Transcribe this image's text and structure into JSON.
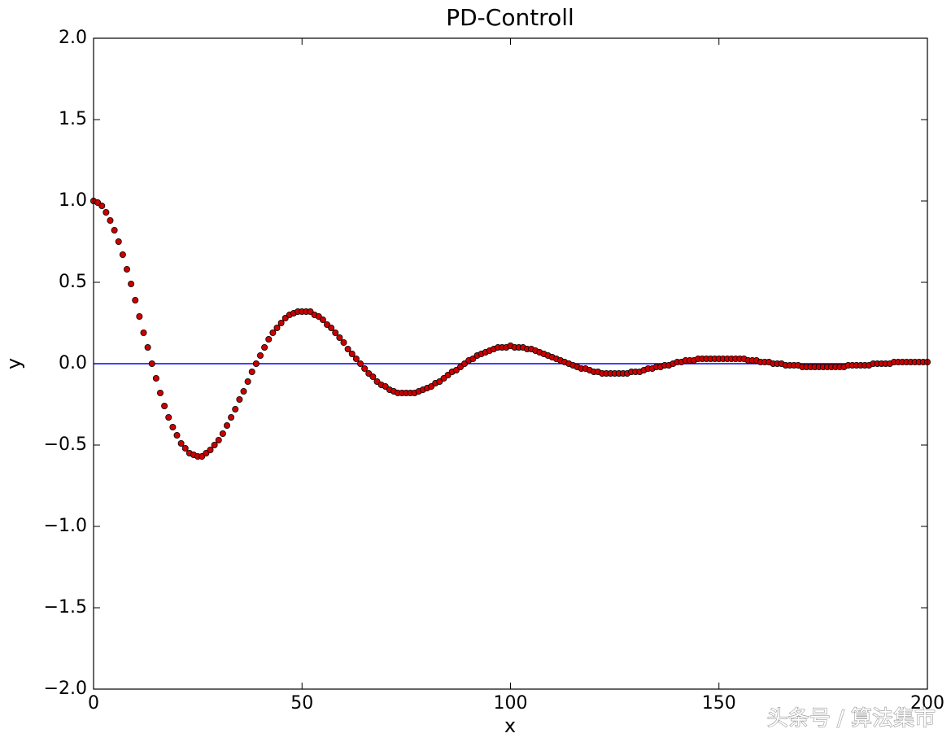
{
  "chart_data": {
    "type": "scatter",
    "title": "PD-Controll",
    "x_label": "x",
    "y_label": "y",
    "annotation": "头条号 / 算法集市",
    "xlim": [
      0,
      200
    ],
    "ylim": [
      -2,
      2
    ],
    "xticks": [
      0,
      50,
      100,
      150,
      200
    ],
    "yticks": [
      {
        "value": -2,
        "label": "−2.0"
      },
      {
        "value": -1.5,
        "label": "−1.5"
      },
      {
        "value": -1,
        "label": "−1.0"
      },
      {
        "value": -0.5,
        "label": "−0.5"
      },
      {
        "value": 0,
        "label": "0.0"
      },
      0.5,
      {
        "value": 1,
        "label": "1.0"
      },
      1.5,
      {
        "value": 2,
        "label": "2.0"
      }
    ],
    "series": [
      {
        "type": "line",
        "color": "#0000ff",
        "x": [
          0,
          200
        ],
        "values": [
          0,
          0
        ]
      },
      {
        "type": "scatter",
        "color": "#cc0000",
        "x": [
          0,
          1,
          2,
          3,
          4,
          5,
          6,
          7,
          8,
          9,
          10,
          11,
          12,
          13,
          14,
          15,
          16,
          17,
          18,
          19,
          20,
          21,
          22,
          23,
          24,
          25,
          26,
          27,
          28,
          29,
          30,
          31,
          32,
          33,
          34,
          35,
          36,
          37,
          38,
          39,
          40,
          41,
          42,
          43,
          44,
          45,
          46,
          47,
          48,
          49,
          50,
          51,
          52,
          53,
          54,
          55,
          56,
          57,
          58,
          59,
          60,
          61,
          62,
          63,
          64,
          65,
          66,
          67,
          68,
          69,
          70,
          71,
          72,
          73,
          74,
          75,
          76,
          77,
          78,
          79,
          80,
          81,
          82,
          83,
          84,
          85,
          86,
          87,
          88,
          89,
          90,
          91,
          92,
          93,
          94,
          95,
          96,
          97,
          98,
          99,
          100,
          101,
          102,
          103,
          104,
          105,
          106,
          107,
          108,
          109,
          110,
          111,
          112,
          113,
          114,
          115,
          116,
          117,
          118,
          119,
          120,
          121,
          122,
          123,
          124,
          125,
          126,
          127,
          128,
          129,
          130,
          131,
          132,
          133,
          134,
          135,
          136,
          137,
          138,
          139,
          140,
          141,
          142,
          143,
          144,
          145,
          146,
          147,
          148,
          149,
          150,
          151,
          152,
          153,
          154,
          155,
          156,
          157,
          158,
          159,
          160,
          161,
          162,
          163,
          164,
          165,
          166,
          167,
          168,
          169,
          170,
          171,
          172,
          173,
          174,
          175,
          176,
          177,
          178,
          179,
          180,
          181,
          182,
          183,
          184,
          185,
          186,
          187,
          188,
          189,
          190,
          191,
          192,
          193,
          194,
          195,
          196,
          197,
          198,
          199,
          200
        ],
        "values": [
          1,
          0.99,
          0.97,
          0.93,
          0.88,
          0.82,
          0.75,
          0.67,
          0.58,
          0.49,
          0.39,
          0.29,
          0.19,
          0.1,
          0,
          -0.09,
          -0.18,
          -0.26,
          -0.33,
          -0.39,
          -0.44,
          -0.49,
          -0.52,
          -0.55,
          -0.56,
          -0.57,
          -0.57,
          -0.55,
          -0.53,
          -0.5,
          -0.47,
          -0.43,
          -0.38,
          -0.33,
          -0.28,
          -0.22,
          -0.17,
          -0.11,
          -0.05,
          0,
          0.05,
          0.1,
          0.15,
          0.19,
          0.22,
          0.25,
          0.28,
          0.3,
          0.31,
          0.32,
          0.32,
          0.32,
          0.32,
          0.3,
          0.29,
          0.27,
          0.24,
          0.22,
          0.19,
          0.16,
          0.13,
          0.09,
          0.06,
          0.03,
          0,
          -0.03,
          -0.06,
          -0.08,
          -0.11,
          -0.13,
          -0.14,
          -0.16,
          -0.17,
          -0.18,
          -0.18,
          -0.18,
          -0.18,
          -0.18,
          -0.17,
          -0.16,
          -0.15,
          -0.14,
          -0.12,
          -0.11,
          -0.09,
          -0.07,
          -0.05,
          -0.04,
          -0.02,
          0,
          0.02,
          0.03,
          0.05,
          0.06,
          0.07,
          0.08,
          0.09,
          0.1,
          0.1,
          0.1,
          0.11,
          0.1,
          0.1,
          0.1,
          0.09,
          0.09,
          0.08,
          0.07,
          0.06,
          0.05,
          0.04,
          0.03,
          0.02,
          0.01,
          0,
          -0.01,
          -0.02,
          -0.03,
          -0.03,
          -0.04,
          -0.05,
          -0.05,
          -0.06,
          -0.06,
          -0.06,
          -0.06,
          -0.06,
          -0.06,
          -0.06,
          -0.05,
          -0.05,
          -0.05,
          -0.04,
          -0.03,
          -0.03,
          -0.02,
          -0.02,
          -0.01,
          -0.01,
          0,
          0.01,
          0.01,
          0.02,
          0.02,
          0.02,
          0.03,
          0.03,
          0.03,
          0.03,
          0.03,
          0.03,
          0.03,
          0.03,
          0.03,
          0.03,
          0.03,
          0.03,
          0.02,
          0.02,
          0.02,
          0.01,
          0.01,
          0.01,
          0,
          0,
          0,
          -0.01,
          -0.01,
          -0.01,
          -0.01,
          -0.02,
          -0.02,
          -0.02,
          -0.02,
          -0.02,
          -0.02,
          -0.02,
          -0.02,
          -0.02,
          -0.02,
          -0.02,
          -0.01,
          -0.01,
          -0.01,
          -0.01,
          -0.01,
          -0.01,
          0,
          0,
          0,
          0,
          0,
          0.01,
          0.01,
          0.01,
          0.01,
          0.01,
          0.01,
          0.01,
          0.01,
          0.01
        ]
      }
    ]
  }
}
